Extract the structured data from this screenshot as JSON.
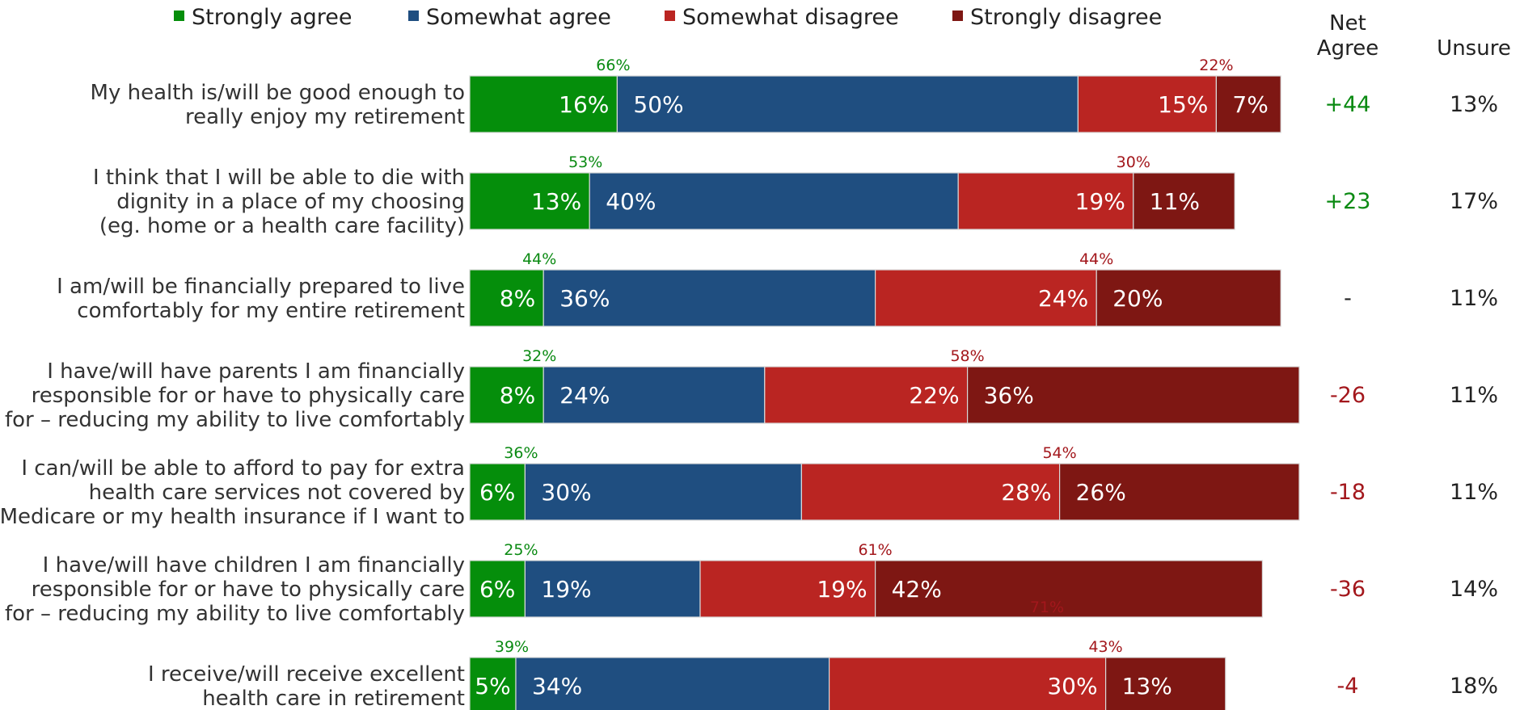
{
  "colors": {
    "strongly_agree": "#058E0B",
    "somewhat_agree": "#1F4E80",
    "somewhat_disagree": "#BA2522",
    "strongly_disagree": "#7E1713",
    "agree_text": "#0A8A12",
    "disagree_text": "#A3171C",
    "label_text": "#333333"
  },
  "chart_data": {
    "type": "bar",
    "orientation": "horizontal",
    "stacked": true,
    "legend": [
      "Strongly agree",
      "Somewhat agree",
      "Somewhat disagree",
      "Strongly disagree"
    ],
    "legend_position": "top",
    "columns": {
      "net_agree": "Net\nAgree",
      "unsure": "Unsure"
    },
    "categories": [
      "My health is/will be good enough to\nreally enjoy my retirement",
      "I think that I will be able to die with\ndignity in a place of my choosing\n(eg. home or a health care facility)",
      "I am/will be financially prepared to live\ncomfortably for my entire retirement",
      "I have/will have parents I am financially\nresponsible for or have to physically care\nfor – reducing my ability to live comfortably",
      "I can/will be able to afford to pay for extra\nhealth care services not covered by\nMedicare or my health insurance if I want to",
      "I have/will have children I am financially\nresponsible for or have to physically care\nfor – reducing my ability to live comfortably",
      "I receive/will receive excellent\nhealth care in retirement"
    ],
    "series": [
      {
        "name": "Strongly agree",
        "values": [
          16,
          13,
          8,
          8,
          6,
          6,
          5
        ]
      },
      {
        "name": "Somewhat agree",
        "values": [
          50,
          40,
          36,
          24,
          30,
          19,
          34
        ]
      },
      {
        "name": "Somewhat disagree",
        "values": [
          15,
          19,
          24,
          22,
          28,
          19,
          30
        ]
      },
      {
        "name": "Strongly disagree",
        "values": [
          7,
          11,
          20,
          36,
          26,
          42,
          13
        ]
      }
    ],
    "agree_totals": [
      "66%",
      "53%",
      "44%",
      "32%",
      "36%",
      "25%",
      "39%"
    ],
    "disagree_totals": [
      "22%",
      "30%",
      "44%",
      "58%",
      "54%",
      "61%",
      "43%"
    ],
    "net_agree": [
      "+44",
      "+23",
      "-",
      "-26",
      "-18",
      "-36",
      "-4"
    ],
    "unsure": [
      "13%",
      "17%",
      "11%",
      "11%",
      "11%",
      "14%",
      "18%"
    ],
    "annotations": [
      "71%"
    ],
    "xlim": [
      0,
      90
    ]
  }
}
